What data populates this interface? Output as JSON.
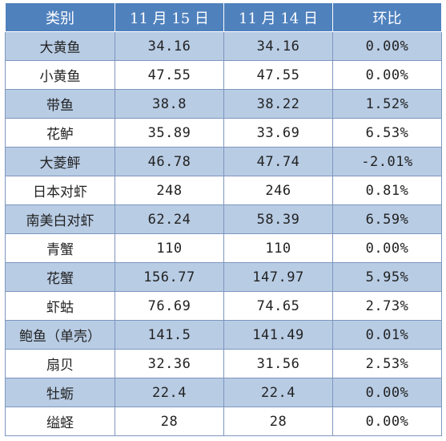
{
  "table": {
    "headers": [
      "类别",
      "11 月 15 日",
      "11 月 14 日",
      "环比"
    ],
    "rows": [
      {
        "name": "大黄鱼",
        "nov15": "34.16",
        "nov14": "34.16",
        "change": "0.00%"
      },
      {
        "name": "小黄鱼",
        "nov15": "47.55",
        "nov14": "47.55",
        "change": "0.00%"
      },
      {
        "name": "带鱼",
        "nov15": "38.8",
        "nov14": "38.22",
        "change": "1.52%"
      },
      {
        "name": "花鲈",
        "nov15": "35.89",
        "nov14": "33.69",
        "change": "6.53%"
      },
      {
        "name": "大菱鲆",
        "nov15": "46.78",
        "nov14": "47.74",
        "change": "-2.01%"
      },
      {
        "name": "日本对虾",
        "nov15": "248",
        "nov14": "246",
        "change": "0.81%"
      },
      {
        "name": "南美白对虾",
        "nov15": "62.24",
        "nov14": "58.39",
        "change": "6.59%"
      },
      {
        "name": "青蟹",
        "nov15": "110",
        "nov14": "110",
        "change": "0.00%"
      },
      {
        "name": "花蟹",
        "nov15": "156.77",
        "nov14": "147.97",
        "change": "5.95%"
      },
      {
        "name": "虾蛄",
        "nov15": "76.69",
        "nov14": "74.65",
        "change": "2.73%"
      },
      {
        "name": "鲍鱼（单壳）",
        "nov15": "141.5",
        "nov14": "141.49",
        "change": "0.01%"
      },
      {
        "name": "扇贝",
        "nov15": "32.36",
        "nov14": "31.56",
        "change": "2.53%"
      },
      {
        "name": "牡蛎",
        "nov15": "22.4",
        "nov14": "22.4",
        "change": "0.00%"
      },
      {
        "name": "缢蛏",
        "nov15": "28",
        "nov14": "28",
        "change": "0.00%"
      }
    ]
  },
  "colors": {
    "header_bg": "#4f81bd",
    "band_bg": "#b8cce4",
    "plain_bg": "#ffffff",
    "border": "#7e96bf"
  }
}
